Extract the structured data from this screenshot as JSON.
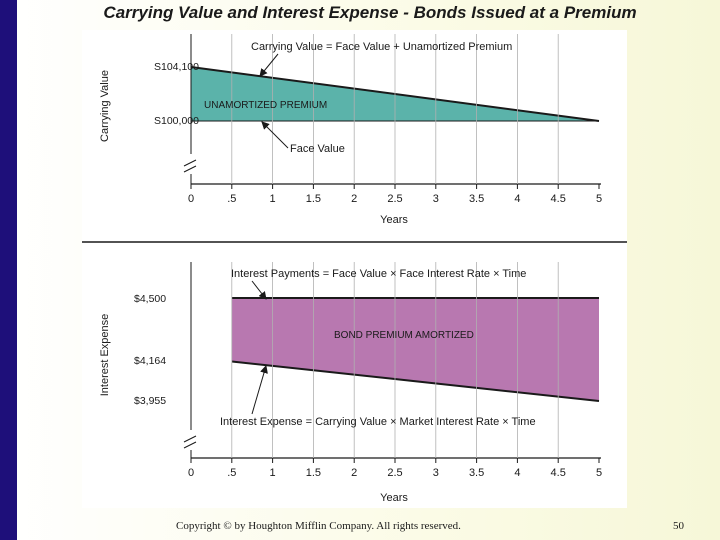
{
  "page": {
    "title": "Carrying Value and Interest Expense - Bonds Issued at a Premium"
  },
  "footer": {
    "copyright": "Copyright © by Houghton Mifflin Company. All rights reserved.",
    "page_number": "50"
  },
  "colors": {
    "teal": "#5bb3aa",
    "purple": "#b878b0",
    "sidebar": "#1e0f7a"
  },
  "chart_data": [
    {
      "type": "area",
      "ylabel": "Carrying Value",
      "xlabel": "Years",
      "x_ticks": [
        "0",
        ".5",
        "1",
        "1.5",
        "2",
        "2.5",
        "3",
        "3.5",
        "4",
        "4.5",
        "5"
      ],
      "y_ticks": [
        "S104,100",
        "S100,000"
      ],
      "x": [
        0,
        5
      ],
      "series": [
        {
          "name": "Carrying Value",
          "values": [
            104100,
            100000
          ]
        },
        {
          "name": "Face Value",
          "values": [
            100000,
            100000
          ]
        }
      ],
      "fill_label": "UNAMORTIZED PREMIUM",
      "annotations": [
        "Carrying Value = Face Value + Unamortized Premium",
        "Face Value"
      ]
    },
    {
      "type": "area",
      "ylabel": "Interest Expense",
      "xlabel": "Years",
      "x_ticks": [
        "0",
        ".5",
        "1",
        "1.5",
        "2",
        "2.5",
        "3",
        "3.5",
        "4",
        "4.5",
        "5"
      ],
      "y_ticks": [
        "$4,500",
        "$4,164",
        "$3,955"
      ],
      "x": [
        0.5,
        5
      ],
      "series": [
        {
          "name": "Interest Payments",
          "values": [
            4500,
            4500
          ]
        },
        {
          "name": "Interest Expense",
          "values": [
            4164,
            3955
          ]
        }
      ],
      "fill_label": "BOND PREMIUM AMORTIZED",
      "annotations": [
        "Interest Payments = Face Value × Face Interest Rate × Time",
        "Interest Expense = Carrying Value × Market Interest Rate × Time"
      ]
    }
  ]
}
